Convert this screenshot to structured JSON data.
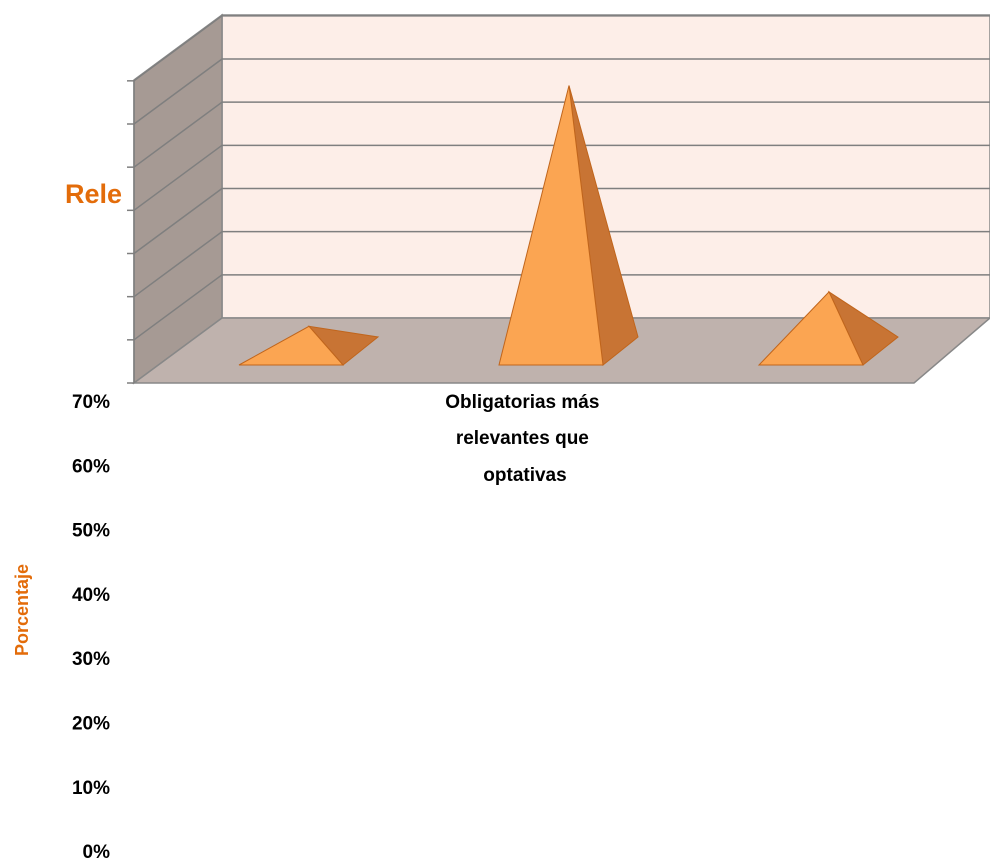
{
  "chart_data": {
    "type": "bar",
    "bar_shape": "pyramid",
    "title": "Rele",
    "ylabel": "Porcentaje",
    "xlabel": "",
    "y_ticks": [
      "70%",
      "60%",
      "50%",
      "40%",
      "30%",
      "20%",
      "10%",
      "0%"
    ],
    "categories": [
      "",
      "Obligatorias más relevantes que optativas",
      ""
    ],
    "series": [
      {
        "values": [
          9,
          65,
          17
        ]
      }
    ],
    "ylim": [
      0,
      70
    ],
    "grid": true,
    "colors": {
      "bar_front": "#fba552",
      "bar_side": "#c87434",
      "bar_edge": "#c0651c",
      "back_wall": "#fdeee8",
      "side_wall": "#a69a94",
      "floor": "#bfb2ad",
      "title": "#e36c0a",
      "ylabel": "#e36c0a"
    }
  }
}
